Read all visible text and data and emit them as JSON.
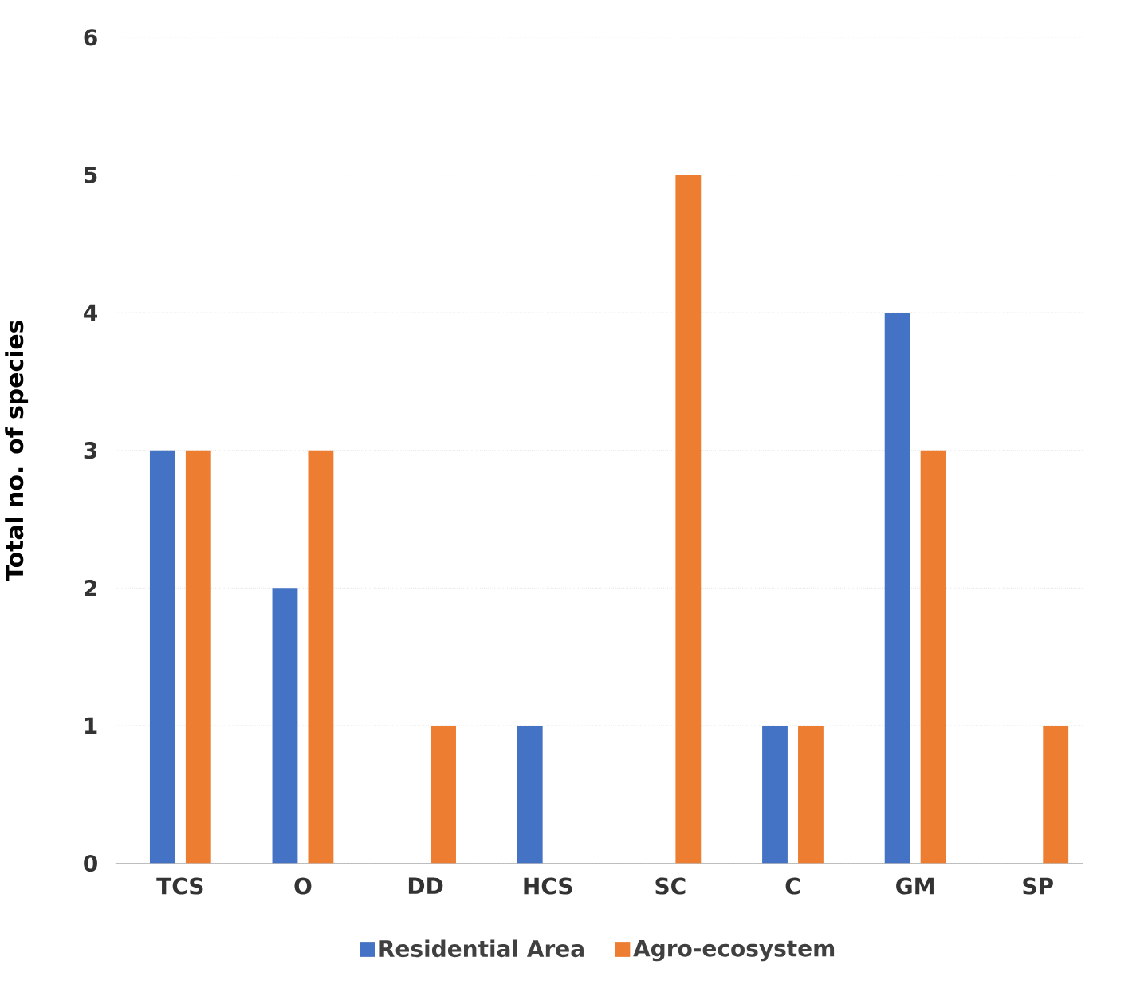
{
  "chart_data": {
    "type": "bar",
    "ylabel": "Total no. of species",
    "categories": [
      "TCS",
      "O",
      "DD",
      "HCS",
      "SC",
      "C",
      "GM",
      "SP"
    ],
    "series": [
      {
        "name": "Residential Area",
        "color": "#4472c4",
        "values": [
          3,
          2,
          0,
          1,
          0,
          1,
          4,
          0
        ]
      },
      {
        "name": "Agro-ecosystem",
        "color": "#ed7d31",
        "values": [
          3,
          3,
          1,
          0,
          5,
          1,
          3,
          1
        ]
      }
    ],
    "ylim": [
      0,
      6
    ],
    "yticks": [
      0,
      1,
      2,
      3,
      4,
      5,
      6
    ],
    "grid": "y",
    "legend": "bottom"
  }
}
